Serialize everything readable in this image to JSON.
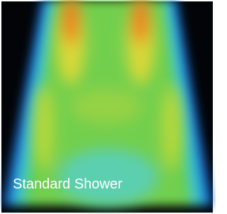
{
  "caption": "Standard Shower"
}
